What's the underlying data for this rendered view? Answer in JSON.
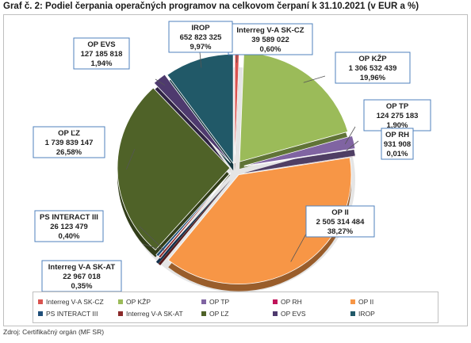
{
  "title": "Graf č. 2: Podiel čerpania operačných programov na celkovom čerpaní k 31.10.2021 (v EUR a %)",
  "source": "Zdroj: Certifikačný orgán (MF SR)",
  "chart_data": {
    "type": "pie",
    "style": "3d exploded pie",
    "title": "Graf č. 2: Podiel čerpania operačných programov na celkovom čerpaní k 31.10.2021 (v EUR a %)",
    "slices": [
      {
        "name": "Interreg V-A SK-CZ",
        "value_label": "39 589 022",
        "pct_label": "0,60%",
        "value": 39589022,
        "percent": 0.6,
        "color": "#d9534f"
      },
      {
        "name": "OP KŽP",
        "value_label": "1 306 532 439",
        "pct_label": "19,96%",
        "value": 1306532439,
        "percent": 19.96,
        "color": "#9bbb59"
      },
      {
        "name": "OP TP",
        "value_label": "124 275 183",
        "pct_label": "1,90%",
        "value": 124275183,
        "percent": 1.9,
        "color": "#8064a2"
      },
      {
        "name": "OP RH",
        "value_label": "931 908",
        "pct_label": "0,01%",
        "value": 931908,
        "percent": 0.01,
        "color": "#c0145a"
      },
      {
        "name": "OP II",
        "value_label": "2 505 314 484",
        "pct_label": "38,27%",
        "value": 2505314484,
        "percent": 38.27,
        "color": "#f79646"
      },
      {
        "name": "Interreg V-A SK-AT",
        "value_label": "22 967 018",
        "pct_label": "0,35%",
        "value": 22967018,
        "percent": 0.35,
        "color": "#8b2a2a"
      },
      {
        "name": "PS INTERACT III",
        "value_label": "26 123 479",
        "pct_label": "0,40%",
        "value": 26123479,
        "percent": 0.4,
        "color": "#1f4e79"
      },
      {
        "name": "OP ĽZ",
        "value_label": "1 739 839 147",
        "pct_label": "26,58%",
        "value": 1739839147,
        "percent": 26.58,
        "color": "#4f6228"
      },
      {
        "name": "OP EVS",
        "value_label": "127 185 818",
        "pct_label": "1,94%",
        "value": 127185818,
        "percent": 1.94,
        "color": "#4e3a6e"
      },
      {
        "name": "IROP",
        "value_label": "652 823 325",
        "pct_label": "9,97%",
        "value": 652823325,
        "percent": 9.97,
        "color": "#215968"
      }
    ],
    "legend": {
      "position": "bottom",
      "rows": [
        [
          "Interreg V-A SK-CZ",
          "OP KŽP",
          "OP TP",
          "OP RH",
          "OP II"
        ],
        [
          "PS INTERACT III",
          "Interreg V-A SK-AT",
          "OP ĽZ",
          "OP EVS",
          "IROP"
        ]
      ]
    }
  }
}
